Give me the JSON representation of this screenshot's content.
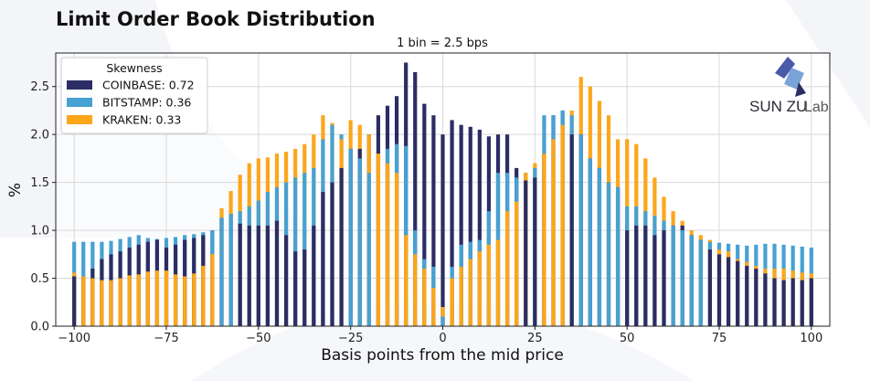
{
  "page_title": "Limit Order Book Distribution",
  "brand": {
    "name": "SUN ZU",
    "suffix": "Lab"
  },
  "colors": {
    "coinbase": "#2b2d64",
    "bitstamp": "#47a1d2",
    "kraken": "#fca61a",
    "grid": "#d9d9d9",
    "watermark": "#eef1f7"
  },
  "chart_data": {
    "type": "bar",
    "title": "1 bin = 2.5 bps",
    "xlabel": "Basis points from the mid price",
    "ylabel": "%",
    "xlim": [
      -105,
      105
    ],
    "ylim": [
      0,
      2.85
    ],
    "x_ticks": [
      -100,
      -75,
      -50,
      -25,
      0,
      25,
      50,
      75,
      100
    ],
    "x_tick_labels": [
      "−100",
      "−75",
      "−50",
      "−25",
      "0",
      "25",
      "50",
      "75",
      "100"
    ],
    "y_ticks": [
      0,
      0.5,
      1.0,
      1.5,
      2.0,
      2.5
    ],
    "y_tick_labels": [
      "0.0",
      "0.5",
      "1.0",
      "1.5",
      "2.0",
      "2.5"
    ],
    "grid": true,
    "legend": {
      "title": "Skewness",
      "position": "top-left"
    },
    "x": [
      -100,
      -97.5,
      -95,
      -92.5,
      -90,
      -87.5,
      -85,
      -82.5,
      -80,
      -77.5,
      -75,
      -72.5,
      -70,
      -67.5,
      -65,
      -62.5,
      -60,
      -57.5,
      -55,
      -52.5,
      -50,
      -47.5,
      -45,
      -42.5,
      -40,
      -37.5,
      -35,
      -32.5,
      -30,
      -27.5,
      -25,
      -22.5,
      -20,
      -17.5,
      -15,
      -12.5,
      -10,
      -7.5,
      -5,
      -2.5,
      0,
      2.5,
      5,
      7.5,
      10,
      12.5,
      15,
      17.5,
      20,
      22.5,
      25,
      27.5,
      30,
      32.5,
      35,
      37.5,
      40,
      42.5,
      45,
      47.5,
      50,
      52.5,
      55,
      57.5,
      60,
      62.5,
      65,
      67.5,
      70,
      72.5,
      75,
      77.5,
      80,
      82.5,
      85,
      87.5,
      90,
      92.5,
      95,
      97.5,
      100
    ],
    "series": [
      {
        "name": "COINBASE: 0.72",
        "values": [
          0.52,
          0.52,
          0.6,
          0.7,
          0.75,
          0.78,
          0.82,
          0.85,
          0.88,
          0.9,
          0.82,
          0.85,
          0.9,
          0.92,
          0.95,
          1.0,
          1.13,
          1.17,
          1.07,
          1.05,
          1.05,
          1.05,
          1.1,
          0.95,
          0.78,
          0.8,
          1.05,
          1.4,
          1.5,
          1.65,
          1.85,
          1.85,
          2.0,
          2.2,
          2.3,
          2.4,
          2.75,
          2.65,
          2.32,
          2.2,
          2.0,
          2.15,
          2.1,
          2.08,
          2.05,
          1.98,
          2.0,
          2.0,
          1.65,
          1.52,
          1.55,
          1.8,
          2.2,
          2.25,
          2.0,
          2.0,
          1.75,
          1.65,
          1.5,
          1.45,
          1.0,
          1.05,
          1.05,
          0.95,
          1.0,
          1.05,
          1.05,
          0.95,
          0.9,
          0.8,
          0.75,
          0.72,
          0.68,
          0.63,
          0.6,
          0.55,
          0.5,
          0.48,
          0.5,
          0.48,
          0.5
        ]
      },
      {
        "name": "BITSTAMP: 0.36",
        "values": [
          0.88,
          0.88,
          0.88,
          0.88,
          0.89,
          0.91,
          0.93,
          0.95,
          0.92,
          0.91,
          0.92,
          0.93,
          0.95,
          0.96,
          0.98,
          1.0,
          1.13,
          1.17,
          1.2,
          1.25,
          1.31,
          1.4,
          1.45,
          1.5,
          1.55,
          1.6,
          1.65,
          1.95,
          2.1,
          2.0,
          1.85,
          1.75,
          1.6,
          1.8,
          1.85,
          1.9,
          1.88,
          1.0,
          0.7,
          0.62,
          0.1,
          0.62,
          0.85,
          0.88,
          0.9,
          1.2,
          1.6,
          1.6,
          1.55,
          1.6,
          1.65,
          2.2,
          2.2,
          2.25,
          2.2,
          2.0,
          1.75,
          1.65,
          1.5,
          1.45,
          1.25,
          1.25,
          1.2,
          1.15,
          1.1,
          1.05,
          1.0,
          0.95,
          0.9,
          0.88,
          0.87,
          0.86,
          0.85,
          0.84,
          0.85,
          0.86,
          0.86,
          0.85,
          0.84,
          0.83,
          0.82
        ]
      },
      {
        "name": "KRAKEN: 0.33",
        "values": [
          0.56,
          0.52,
          0.5,
          0.48,
          0.48,
          0.5,
          0.53,
          0.54,
          0.57,
          0.58,
          0.58,
          0.54,
          0.52,
          0.55,
          0.63,
          0.75,
          1.23,
          1.41,
          1.58,
          1.7,
          1.75,
          1.76,
          1.8,
          1.82,
          1.85,
          1.9,
          2.0,
          2.2,
          2.12,
          1.95,
          2.15,
          2.1,
          2.0,
          1.8,
          1.7,
          1.6,
          0.95,
          0.75,
          0.6,
          0.4,
          0.2,
          0.5,
          0.62,
          0.7,
          0.78,
          0.85,
          0.9,
          1.2,
          1.3,
          1.6,
          1.7,
          1.8,
          1.95,
          2.1,
          2.25,
          2.6,
          2.5,
          2.35,
          2.2,
          1.95,
          1.95,
          1.9,
          1.75,
          1.55,
          1.35,
          1.2,
          1.1,
          1.0,
          0.95,
          0.9,
          0.8,
          0.78,
          0.7,
          0.67,
          0.63,
          0.6,
          0.6,
          0.6,
          0.58,
          0.56,
          0.55
        ]
      }
    ]
  }
}
